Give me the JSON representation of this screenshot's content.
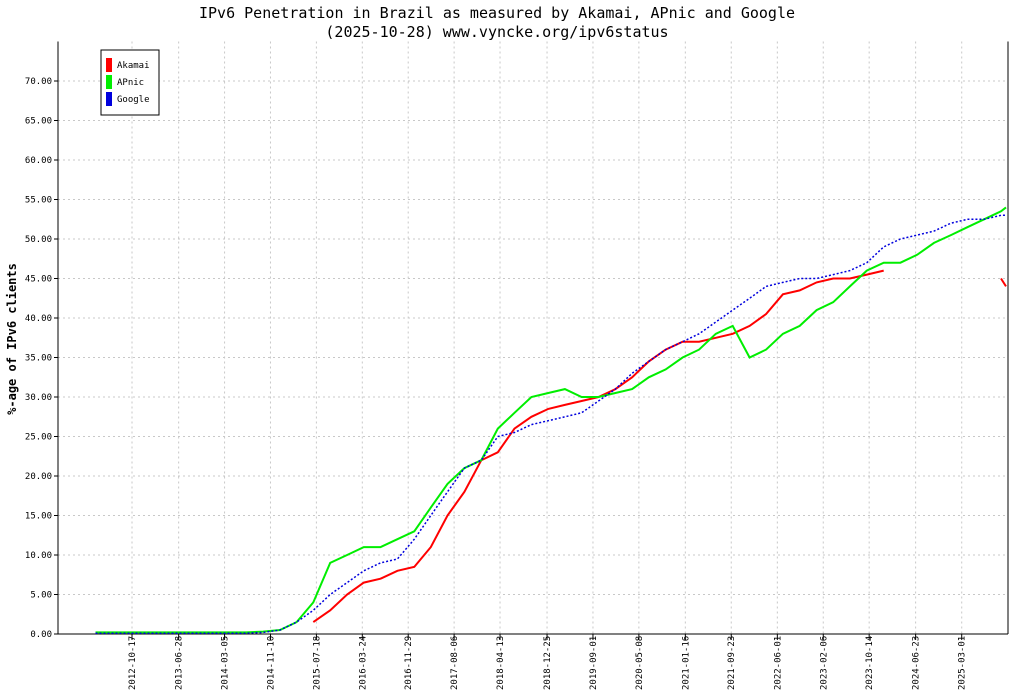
{
  "chart_data": {
    "type": "line",
    "title": "IPv6 Penetration in Brazil as measured by Akamai, APnic and Google",
    "subtitle": "(2025-10-28) www.vyncke.org/ipv6status",
    "y_label": "%-age of IPv6 clients",
    "x": [
      "2012-04-01",
      "2012-07-01",
      "2012-10-01",
      "2013-01-01",
      "2013-04-01",
      "2013-07-01",
      "2013-10-01",
      "2014-01-01",
      "2014-04-01",
      "2014-07-01",
      "2014-10-01",
      "2015-01-01",
      "2015-04-01",
      "2015-07-01",
      "2015-10-01",
      "2016-01-01",
      "2016-04-01",
      "2016-07-01",
      "2016-10-01",
      "2017-01-01",
      "2017-04-01",
      "2017-07-01",
      "2017-10-01",
      "2018-01-01",
      "2018-04-01",
      "2018-07-01",
      "2018-10-01",
      "2019-01-01",
      "2019-04-01",
      "2019-07-01",
      "2019-10-01",
      "2020-01-01",
      "2020-04-01",
      "2020-07-01",
      "2020-10-01",
      "2021-01-01",
      "2021-04-01",
      "2021-07-01",
      "2021-10-01",
      "2022-01-01",
      "2022-04-01",
      "2022-07-01",
      "2022-10-01",
      "2023-01-01",
      "2023-04-01",
      "2023-07-01",
      "2023-10-01",
      "2024-01-01",
      "2024-04-01",
      "2024-07-01",
      "2024-10-01",
      "2025-01-01",
      "2025-04-01",
      "2025-07-01",
      "2025-10-01",
      "2025-10-28"
    ],
    "series": [
      {
        "name": "Akamai",
        "color": "#ff0000",
        "values": [
          null,
          null,
          null,
          null,
          null,
          null,
          null,
          null,
          null,
          null,
          null,
          null,
          null,
          1.5,
          3,
          5,
          6.5,
          7,
          8,
          8.5,
          11,
          15,
          18,
          22,
          23,
          26,
          27.5,
          28.5,
          29,
          29.5,
          30,
          31,
          32.5,
          34.5,
          36,
          37,
          37,
          37.5,
          38,
          39,
          40.5,
          43,
          43.5,
          44.5,
          45,
          45,
          45.5,
          46,
          null,
          null,
          null,
          null,
          null,
          null,
          45,
          44
        ]
      },
      {
        "name": "APnic",
        "color": "#00ee00",
        "values": [
          0.2,
          0.2,
          0.2,
          0.2,
          0.2,
          0.2,
          0.2,
          0.2,
          0.2,
          0.2,
          0.3,
          0.5,
          1.5,
          4,
          9,
          10,
          11,
          11,
          12,
          13,
          16,
          19,
          21,
          22,
          26,
          28,
          30,
          30.5,
          31,
          30,
          30,
          30.5,
          31,
          32.5,
          33.5,
          35,
          36,
          38,
          39,
          35,
          36,
          38,
          39,
          41,
          42,
          44,
          46,
          47,
          47,
          48,
          49.5,
          50.5,
          51.5,
          52.5,
          53.5,
          54
        ]
      },
      {
        "name": "Google",
        "color": "#0000dd",
        "values": [
          0.1,
          0.1,
          0.1,
          0.1,
          0.1,
          0.1,
          0.1,
          0.1,
          0.1,
          0.1,
          0.2,
          0.5,
          1.5,
          3,
          5,
          6.5,
          8,
          9,
          9.5,
          12,
          15,
          18,
          21,
          22,
          25,
          25.5,
          26.5,
          27,
          27.5,
          28,
          29.5,
          31,
          33,
          34.5,
          36,
          37,
          38,
          39.5,
          41,
          42.5,
          44,
          44.5,
          45,
          45,
          45.5,
          46,
          47,
          49,
          50,
          50.5,
          51,
          52,
          52.5,
          52.5,
          53,
          53
        ]
      }
    ],
    "xlim": [
      "2011-09-10",
      "2025-11-08"
    ],
    "xticks": [
      "2012-10-17",
      "2013-06-28",
      "2014-03-05",
      "2014-11-10",
      "2015-07-18",
      "2016-03-24",
      "2016-11-29",
      "2017-08-06",
      "2018-04-13",
      "2018-12-25",
      "2019-09-01",
      "2020-05-08",
      "2021-01-16",
      "2021-09-23",
      "2022-06-01",
      "2023-02-06",
      "2023-10-14",
      "2024-06-23",
      "2025-03-01"
    ],
    "ylim": [
      0,
      75
    ],
    "yticks": [
      {
        "value": 0,
        "label": "0.00"
      },
      {
        "value": 5,
        "label": "5.00"
      },
      {
        "value": 10,
        "label": "10.00"
      },
      {
        "value": 15,
        "label": "15.00"
      },
      {
        "value": 20,
        "label": "20.00"
      },
      {
        "value": 25,
        "label": "25.00"
      },
      {
        "value": 30,
        "label": "30.00"
      },
      {
        "value": 35,
        "label": "35.00"
      },
      {
        "value": 40,
        "label": "40.00"
      },
      {
        "value": 45,
        "label": "45.00"
      },
      {
        "value": 50,
        "label": "50.00"
      },
      {
        "value": 55,
        "label": "55.00"
      },
      {
        "value": 60,
        "label": "60.00"
      },
      {
        "value": 65,
        "label": "65.00"
      },
      {
        "value": 70,
        "label": "70.00"
      }
    ],
    "grid": true,
    "legend": "top-left"
  }
}
